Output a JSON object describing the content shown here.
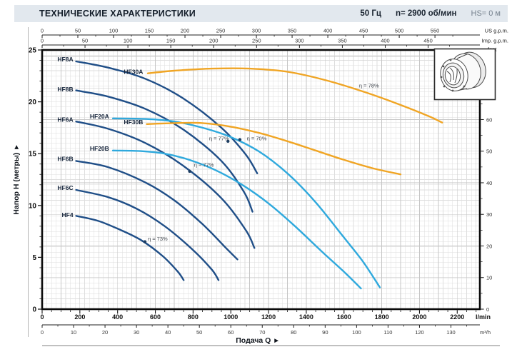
{
  "header": {
    "title": "ТЕХНИЧЕСКИЕ ХАРАКТЕРИСТИКИ",
    "frequency": "50 Гц",
    "speed": "n= 2900 об/мин",
    "suction_head": "HS= 0 м"
  },
  "chart_data": {
    "type": "line",
    "xlabel": "Подача Q",
    "ylabel": "Напор H (метры)",
    "arrow": "▶",
    "xlim": [
      0,
      2320
    ],
    "ylim": [
      0,
      25
    ],
    "x_axes": [
      {
        "id": "us_gpm",
        "label": "US g.p.m.",
        "unit_to_lmin": 3.7854,
        "tick_step": 50,
        "tick_max": 550,
        "minor_step": 25,
        "side": "top",
        "row": 0
      },
      {
        "id": "imp_gpm",
        "label": "Imp. g.p.m.",
        "unit_to_lmin": 4.5461,
        "tick_step": 50,
        "tick_max": 450,
        "minor_step": 25,
        "side": "top",
        "row": 1
      },
      {
        "id": "lmin",
        "label": "l/min",
        "unit_to_lmin": 1,
        "tick_step": 200,
        "tick_max": 2200,
        "minor_step": 50,
        "side": "bottom",
        "row": 0
      },
      {
        "id": "m3h",
        "label": "m³/h",
        "unit_to_lmin": 16.6667,
        "tick_step": 10,
        "tick_max": 130,
        "minor_step": 5,
        "side": "bottom",
        "row": 1
      }
    ],
    "y_axes": [
      {
        "id": "meters",
        "label": "Напор H (метры)",
        "unit_to_m": 1,
        "tick_step": 5,
        "tick_max": 25,
        "minor_step": 1,
        "side": "left"
      },
      {
        "id": "feet",
        "label": "feet",
        "unit_to_m": 0.3048,
        "tick_step": 10,
        "tick_max": 80,
        "minor_step": 5,
        "side": "right"
      }
    ],
    "series": [
      {
        "name": "HF8A",
        "color": "#1f4e87",
        "label_q": 165,
        "label_h": 24.1,
        "points": [
          [
            180,
            23.9
          ],
          [
            350,
            23.3
          ],
          [
            550,
            22.2
          ],
          [
            750,
            20.3
          ],
          [
            950,
            17.5
          ],
          [
            1080,
            14.9
          ],
          [
            1140,
            13.1
          ]
        ]
      },
      {
        "name": "HF8B",
        "color": "#1f4e87",
        "label_q": 165,
        "label_h": 21.2,
        "points": [
          [
            180,
            21.1
          ],
          [
            350,
            20.5
          ],
          [
            550,
            19.3
          ],
          [
            750,
            17.3
          ],
          [
            950,
            14.3
          ],
          [
            1070,
            11.3
          ],
          [
            1115,
            9.4
          ]
        ]
      },
      {
        "name": "HF6A",
        "color": "#1f4e87",
        "label_q": 165,
        "label_h": 18.3,
        "points": [
          [
            180,
            18.1
          ],
          [
            350,
            17.4
          ],
          [
            550,
            16.0
          ],
          [
            750,
            13.8
          ],
          [
            950,
            10.7
          ],
          [
            1080,
            7.6
          ],
          [
            1125,
            5.9
          ]
        ]
      },
      {
        "name": "HF6B",
        "color": "#1f4e87",
        "label_q": 165,
        "label_h": 14.5,
        "points": [
          [
            180,
            14.3
          ],
          [
            350,
            13.7
          ],
          [
            550,
            12.2
          ],
          [
            700,
            10.5
          ],
          [
            850,
            8.2
          ],
          [
            980,
            5.8
          ],
          [
            1035,
            4.8
          ]
        ]
      },
      {
        "name": "HF6C",
        "color": "#1f4e87",
        "label_q": 165,
        "label_h": 11.7,
        "points": [
          [
            180,
            11.5
          ],
          [
            350,
            10.8
          ],
          [
            500,
            9.7
          ],
          [
            650,
            8.0
          ],
          [
            800,
            5.7
          ],
          [
            900,
            3.8
          ],
          [
            935,
            2.8
          ]
        ]
      },
      {
        "name": "HF4",
        "color": "#1f4e87",
        "label_q": 165,
        "label_h": 9.1,
        "points": [
          [
            180,
            9.0
          ],
          [
            300,
            8.5
          ],
          [
            420,
            7.6
          ],
          [
            530,
            6.6
          ],
          [
            640,
            5.1
          ],
          [
            720,
            3.6
          ],
          [
            750,
            2.8
          ]
        ]
      },
      {
        "name": "HF20A",
        "color": "#2fa9dd",
        "label_q": 355,
        "label_h": 18.6,
        "points": [
          [
            375,
            18.4
          ],
          [
            550,
            18.35
          ],
          [
            700,
            18.1
          ],
          [
            850,
            17.5
          ],
          [
            1000,
            16.6
          ],
          [
            1150,
            15.2
          ],
          [
            1300,
            13.1
          ],
          [
            1450,
            10.3
          ],
          [
            1600,
            6.9
          ],
          [
            1700,
            4.6
          ],
          [
            1790,
            2.1
          ]
        ]
      },
      {
        "name": "HF20B",
        "color": "#2fa9dd",
        "label_q": 355,
        "label_h": 15.5,
        "points": [
          [
            375,
            15.3
          ],
          [
            520,
            15.25
          ],
          [
            650,
            15.0
          ],
          [
            780,
            14.4
          ],
          [
            920,
            13.4
          ],
          [
            1060,
            12.0
          ],
          [
            1200,
            10.2
          ],
          [
            1340,
            8.0
          ],
          [
            1480,
            5.6
          ],
          [
            1600,
            3.6
          ],
          [
            1690,
            2.0
          ]
        ]
      },
      {
        "name": "HF30A",
        "color": "#f0a524",
        "label_q": 535,
        "label_h": 22.9,
        "points": [
          [
            560,
            22.75
          ],
          [
            700,
            23.0
          ],
          [
            900,
            23.2
          ],
          [
            1100,
            23.2
          ],
          [
            1300,
            22.9
          ],
          [
            1500,
            22.1
          ],
          [
            1700,
            21.0
          ],
          [
            1900,
            19.7
          ],
          [
            2050,
            18.6
          ],
          [
            2120,
            18.0
          ]
        ]
      },
      {
        "name": "HF30B",
        "color": "#f0a524",
        "label_q": 535,
        "label_h": 18.05,
        "points": [
          [
            555,
            17.85
          ],
          [
            700,
            17.95
          ],
          [
            850,
            17.95
          ],
          [
            1000,
            17.6
          ],
          [
            1150,
            17.0
          ],
          [
            1300,
            16.2
          ],
          [
            1450,
            15.3
          ],
          [
            1600,
            14.4
          ],
          [
            1750,
            13.6
          ],
          [
            1900,
            13.0
          ]
        ]
      }
    ],
    "efficiency_labels": [
      {
        "text": "η = 78%",
        "q": 1680,
        "h": 21.55
      },
      {
        "text": "η = 77%",
        "q": 885,
        "h": 16.45
      },
      {
        "text": "η = 70%",
        "q": 1085,
        "h": 16.45
      },
      {
        "text": "η = 77%",
        "q": 805,
        "h": 13.9
      },
      {
        "text": "η = 73%",
        "q": 560,
        "h": 6.8
      }
    ],
    "efficiency_dots": [
      {
        "q": 985,
        "h": 16.2
      },
      {
        "q": 1048,
        "h": 16.35
      },
      {
        "q": 782,
        "h": 13.3
      },
      {
        "q": 545,
        "h": 6.5
      }
    ],
    "grid": {
      "v_minor_lmin": 25,
      "v_major_lmin": 100,
      "h_minor_m": 0.5,
      "h_major_feet": 10
    }
  }
}
